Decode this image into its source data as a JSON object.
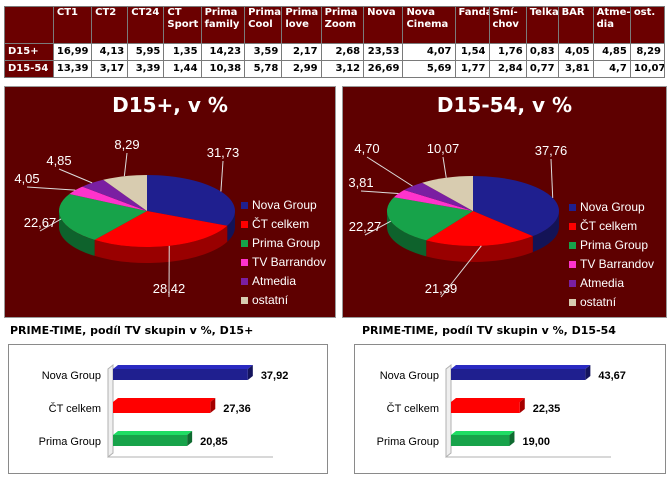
{
  "table": {
    "columns": [
      "",
      "ČT1",
      "ČT2",
      "ČT24",
      "ČT Sport",
      "Prima family",
      "Prima Cool",
      "Prima love",
      "Prima Zoom",
      "Nova",
      "Nova Cinema",
      "Fanda",
      "Smí-chov",
      "Telka",
      "BAR",
      "Atme-dia",
      "ost."
    ],
    "rows": [
      {
        "label": "D15+",
        "values": [
          "16,99",
          "4,13",
          "5,95",
          "1,35",
          "14,23",
          "3,59",
          "2,17",
          "2,68",
          "23,53",
          "4,07",
          "1,54",
          "1,76",
          "0,83",
          "4,05",
          "4,85",
          "8,29"
        ]
      },
      {
        "label": "D15-54",
        "values": [
          "13,39",
          "3,17",
          "3,39",
          "1,44",
          "10,38",
          "5,78",
          "2,99",
          "3,12",
          "26,69",
          "5,69",
          "1,77",
          "2,84",
          "0,77",
          "3,81",
          "4,7",
          "10,07"
        ]
      }
    ]
  },
  "chart_data": [
    {
      "type": "pie",
      "title": "D15+, v %",
      "labels": [
        "Nova Group",
        "ČT celkem",
        "Prima Group",
        "TV Barrandov",
        "Atmedia",
        "ostatní"
      ],
      "values": [
        31.73,
        28.42,
        22.67,
        4.05,
        4.85,
        8.29
      ],
      "value_labels": [
        "31,73",
        "28,42",
        "22,67",
        "4,05",
        "4,85",
        "8,29"
      ],
      "colors": [
        "#1f1f8f",
        "#ff0000",
        "#17a34a",
        "#ff33cc",
        "#7a1fa2",
        "#d8ccb0"
      ],
      "legend": "right"
    },
    {
      "type": "pie",
      "title": "D15-54, v %",
      "labels": [
        "Nova Group",
        "ČT celkem",
        "Prima Group",
        "TV Barrandov",
        "Atmedia",
        "ostatní"
      ],
      "values": [
        37.76,
        21.39,
        22.27,
        3.81,
        4.7,
        10.07
      ],
      "value_labels": [
        "37,76",
        "21,39",
        "22,27",
        "3,81",
        "4,70",
        "10,07"
      ],
      "colors": [
        "#1f1f8f",
        "#ff0000",
        "#17a34a",
        "#ff33cc",
        "#7a1fa2",
        "#d8ccb0"
      ],
      "legend": "right"
    },
    {
      "type": "bar",
      "orientation": "horizontal",
      "title": "PRIME-TIME, podíl TV skupin v %, D15+",
      "categories": [
        "Nova Group",
        "ČT celkem",
        "Prima Group"
      ],
      "values": [
        37.92,
        27.36,
        20.85
      ],
      "value_labels": [
        "37,92",
        "27,36",
        "20,85"
      ],
      "colors": [
        "#1f1f8f",
        "#ff0000",
        "#17a34a"
      ],
      "xlim": [
        0,
        45
      ]
    },
    {
      "type": "bar",
      "orientation": "horizontal",
      "title": "PRIME-TIME, podíl TV skupin v %, D15-54",
      "categories": [
        "Nova Group",
        "ČT celkem",
        "Prima Group"
      ],
      "values": [
        43.67,
        22.35,
        19.0
      ],
      "value_labels": [
        "43,67",
        "22,35",
        "19,00"
      ],
      "colors": [
        "#1f1f8f",
        "#ff0000",
        "#17a34a"
      ],
      "xlim": [
        0,
        52
      ]
    }
  ]
}
